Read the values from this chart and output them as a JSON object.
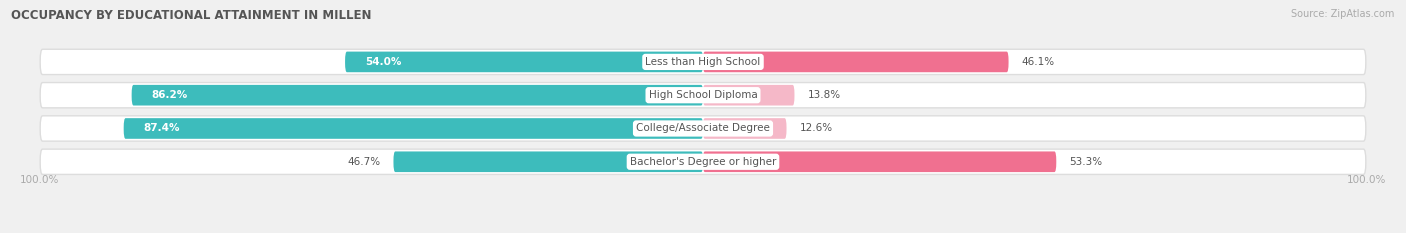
{
  "title": "OCCUPANCY BY EDUCATIONAL ATTAINMENT IN MILLEN",
  "source": "Source: ZipAtlas.com",
  "categories": [
    "Less than High School",
    "High School Diploma",
    "College/Associate Degree",
    "Bachelor's Degree or higher"
  ],
  "owner_pct": [
    54.0,
    86.2,
    87.4,
    46.7
  ],
  "renter_pct": [
    46.1,
    13.8,
    12.6,
    53.3
  ],
  "owner_color": "#3DBCBC",
  "renter_color": "#F07090",
  "renter_color_light": "#F5B8C8",
  "bg_color": "#F0F0F0",
  "row_bg_color": "#FFFFFF",
  "row_border_color": "#DDDDDD",
  "title_color": "#555555",
  "text_dark": "#555555",
  "text_white": "#FFFFFF",
  "source_color": "#AAAAAA",
  "axis_label_color": "#AAAAAA",
  "bar_height": 0.62,
  "figsize": [
    14.06,
    2.33
  ],
  "dpi": 100
}
